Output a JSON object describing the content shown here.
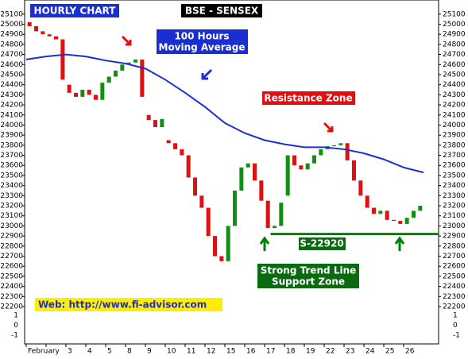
{
  "chart_data": {
    "type": "candlestick",
    "title": "HOURLY CHART",
    "subtitle": "BSE - SENSEX",
    "categories": [
      "February",
      null,
      "3",
      "4",
      "5",
      "8",
      "9",
      "10",
      "11",
      "12",
      "15",
      "16",
      "17",
      "18",
      "19",
      "22",
      "23",
      "24",
      "25",
      "26"
    ],
    "candles_per_category": 3,
    "up_color": "#109010",
    "down_color": "#e01010",
    "open": [
      25020,
      24980,
      24930,
      24900,
      24880,
      24850,
      24400,
      24320,
      24280,
      24350,
      24300,
      24250,
      24420,
      24480,
      24540,
      24600,
      24620,
      24650,
      24100,
      24050,
      23980,
      23850,
      23820,
      23760,
      23700,
      23480,
      23300,
      23180,
      22900,
      22700,
      22650,
      23000,
      23350,
      23580,
      23620,
      23450,
      23250,
      22980,
      23000,
      23300,
      23700,
      23600,
      23560,
      23620,
      23700,
      23760,
      23790,
      23800,
      23820,
      23650,
      23450,
      23300,
      23180,
      23120,
      23150,
      23060,
      23050,
      23020,
      23080,
      23150
    ],
    "close": [
      24980,
      24930,
      24900,
      24880,
      24850,
      24450,
      24320,
      24280,
      24350,
      24300,
      24250,
      24420,
      24480,
      24540,
      24600,
      24620,
      24650,
      24280,
      24050,
      23980,
      24060,
      23820,
      23760,
      23700,
      23480,
      23300,
      23180,
      22900,
      22700,
      22650,
      23000,
      23350,
      23580,
      23620,
      23450,
      23250,
      22980,
      23000,
      23230,
      23700,
      23600,
      23560,
      23620,
      23700,
      23760,
      23790,
      23800,
      23820,
      23650,
      23450,
      23300,
      23180,
      23120,
      23150,
      23060,
      23050,
      23020,
      23080,
      23150,
      23200
    ],
    "moving_average": {
      "color": "#1c2fd8",
      "x": [
        0,
        1,
        2,
        3,
        4,
        5,
        6,
        7,
        8,
        9,
        10,
        11,
        12,
        13,
        14,
        15,
        16,
        17,
        18,
        19,
        20
      ],
      "values": [
        24650,
        24680,
        24700,
        24680,
        24640,
        24610,
        24560,
        24450,
        24320,
        24180,
        24020,
        23920,
        23850,
        23810,
        23780,
        23780,
        23760,
        23720,
        23660,
        23580,
        23530
      ]
    },
    "support": {
      "value": 22920,
      "x_start": 12.3,
      "color": "#008000"
    },
    "ylim": [
      21830,
      25240
    ],
    "xlim": [
      0,
      20.76
    ],
    "yticks": [
      22200,
      22300,
      22400,
      22500,
      22600,
      22700,
      22800,
      22900,
      23000,
      23100,
      23200,
      23300,
      23400,
      23500,
      23600,
      23700,
      23800,
      23900,
      24000,
      24100,
      24200,
      24300,
      24400,
      24500,
      24600,
      24700,
      24800,
      24900,
      25000,
      25100
    ],
    "lower_axis_labels": [
      "1",
      "0",
      "-1"
    ],
    "annotations": {
      "ma": [
        "100 Hours",
        "Moving Average"
      ],
      "resistance": "Resistance Zone",
      "support_label": "S-22920",
      "support_zone": [
        "Strong Trend Line",
        "Support Zone"
      ],
      "web": "Web: http://www.fi-advisor.com"
    }
  }
}
